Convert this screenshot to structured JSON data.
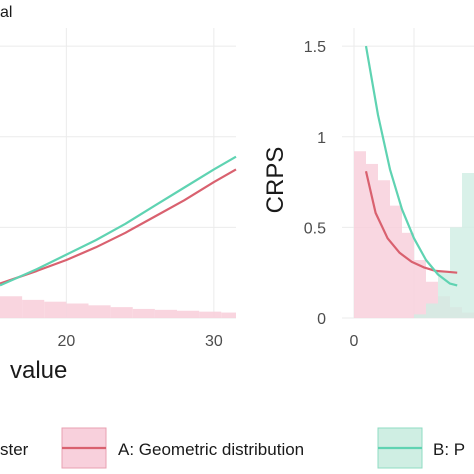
{
  "top_fragment": "al",
  "chart_data": [
    {
      "type": "line",
      "panel": "left (cropped)",
      "xlabel": "value",
      "x_ticks": [
        20,
        30
      ],
      "xlim": [
        15.5,
        31.5
      ],
      "ylim": [
        0,
        1.6
      ],
      "grid": true,
      "series": [
        {
          "name": "A: Geometric distribution",
          "color": "#d9616f",
          "x": [
            15.5,
            18,
            20,
            22,
            24,
            26,
            28,
            30,
            31.5
          ],
          "values": [
            0.19,
            0.26,
            0.32,
            0.39,
            0.47,
            0.56,
            0.65,
            0.75,
            0.82
          ]
        },
        {
          "name": "B: P",
          "color": "#5fd3b2",
          "x": [
            15.5,
            18,
            20,
            22,
            24,
            26,
            28,
            30,
            31.5
          ],
          "values": [
            0.18,
            0.27,
            0.35,
            0.43,
            0.52,
            0.62,
            0.72,
            0.82,
            0.89
          ]
        }
      ],
      "histogram": {
        "fill": "#f8d0dc",
        "x": [
          15.5,
          17,
          18.5,
          20,
          21.5,
          23,
          24.5,
          26,
          27.5,
          29,
          30.5
        ],
        "values": [
          0.12,
          0.1,
          0.09,
          0.08,
          0.07,
          0.06,
          0.05,
          0.045,
          0.04,
          0.035,
          0.03
        ]
      }
    },
    {
      "type": "line",
      "panel": "right (cropped)",
      "ylabel": "CRPS",
      "y_ticks": [
        "0",
        "0.5",
        "1",
        "1.5"
      ],
      "y_tick_values": [
        0,
        0.5,
        1,
        1.5
      ],
      "x_ticks": [
        0
      ],
      "xlim": [
        -1,
        10
      ],
      "ylim": [
        0,
        1.6
      ],
      "grid": true,
      "series": [
        {
          "name": "A: Geometric distribution",
          "color": "#d9616f",
          "x": [
            1,
            1.8,
            2.8,
            3.8,
            4.8,
            5.8,
            6.8,
            7.8,
            8.6
          ],
          "values": [
            0.81,
            0.58,
            0.44,
            0.36,
            0.31,
            0.28,
            0.26,
            0.255,
            0.25
          ]
        },
        {
          "name": "B: P",
          "color": "#5fd3b2",
          "x": [
            1,
            2,
            3,
            4,
            5,
            6,
            7,
            8,
            8.6
          ],
          "values": [
            1.5,
            1.12,
            0.82,
            0.6,
            0.44,
            0.32,
            0.24,
            0.19,
            0.18
          ]
        }
      ],
      "histogram_a": {
        "fill": "#f8d0dc",
        "x": [
          0,
          1,
          2,
          3,
          4,
          5,
          6,
          7,
          8,
          9
        ],
        "values": [
          0.92,
          0.85,
          0.76,
          0.62,
          0.47,
          0.32,
          0.2,
          0.12,
          0.06,
          0.03
        ]
      },
      "histogram_b": {
        "fill": "#cfeee3",
        "x": [
          5,
          6,
          7,
          8,
          9
        ],
        "values": [
          0.02,
          0.08,
          0.26,
          0.5,
          0.8
        ]
      }
    }
  ],
  "legend": {
    "title_fragment": "ster",
    "items": [
      {
        "label": "A: Geometric distribution",
        "color": "#d9616f",
        "fill": "#f8d0dc"
      },
      {
        "label": "B: P",
        "color": "#5fd3b2",
        "fill": "#cfeee3"
      }
    ]
  }
}
